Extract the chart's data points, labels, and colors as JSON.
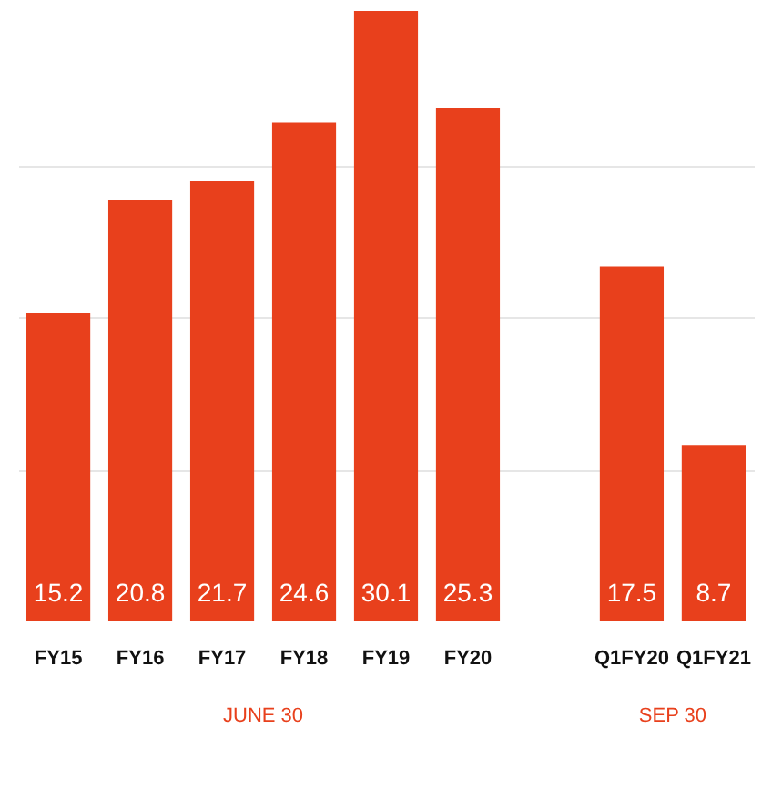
{
  "chart_data": {
    "type": "bar",
    "categories": [
      "FY15",
      "FY16",
      "FY17",
      "FY18",
      "FY19",
      "FY20",
      null,
      "Q1FY20",
      "Q1FY21"
    ],
    "values": [
      15.2,
      20.8,
      21.7,
      24.6,
      30.1,
      25.3,
      null,
      17.5,
      8.7
    ],
    "color": "#e8401c",
    "ylim": [
      0,
      30.1
    ],
    "yticks": [
      {
        "value": 7.5,
        "label": null
      },
      {
        "value": 15,
        "label": null
      },
      {
        "value": 22.5,
        "label": null
      }
    ],
    "grid": "y",
    "tick_labels": "x",
    "data_labels": true,
    "annotations": [
      "JUNE 30",
      "SEP 30"
    ]
  }
}
